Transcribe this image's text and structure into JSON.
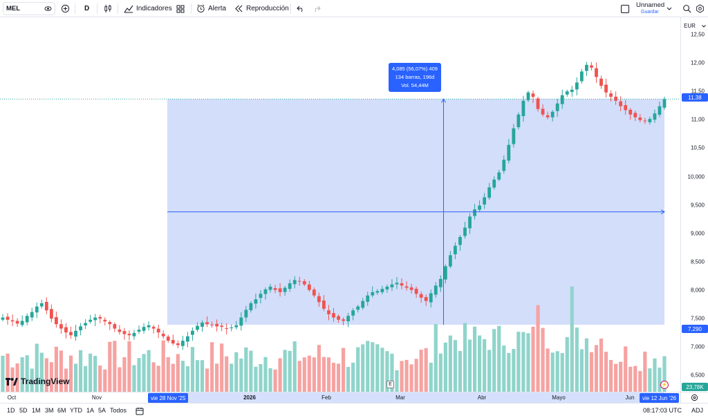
{
  "toolbar": {
    "symbol": "MEL",
    "interval": "D",
    "indicators_label": "Indicadores",
    "alert_label": "Alerta",
    "replay_label": "Reproducción",
    "layout_name": "Unnamed",
    "save_label": "Guardar",
    "icons": [
      "eye-icon",
      "plus-circle-icon",
      "candles-icon",
      "indicators-icon",
      "grid-icon",
      "alarm-icon",
      "replay-icon",
      "undo-icon",
      "redo-icon",
      "search-icon",
      "settings-icon"
    ]
  },
  "price_scale": {
    "currency": "EUR",
    "labels": [
      "12,50",
      "12,00",
      "11,50",
      "11,00",
      "10,50",
      "10,000",
      "9,500",
      "9,000",
      "8,500",
      "8,000",
      "7,500",
      "7,000",
      "6,500"
    ],
    "current_price_label": "11,38",
    "range_low_label": "7,290",
    "volume_label": "23,78K"
  },
  "time_scale": {
    "labels": [
      "Oct",
      "Nov",
      "2026",
      "Feb",
      "Mar",
      "Abr",
      "Mayo",
      "Jun"
    ],
    "range_start_label": "vie 28 Nov '25",
    "range_end_label": "vie 12 Jun '26"
  },
  "measure_tooltip": {
    "line1": "4,085 (56,07%) 409",
    "line2": "134 barras, 196d",
    "line3": "Vol. 54,44M"
  },
  "bottom": {
    "ranges": [
      "1D",
      "5D",
      "1M",
      "3M",
      "6M",
      "YTD",
      "1A",
      "5A",
      "Todos"
    ],
    "time": "08:17:03 UTC",
    "adj": "ADJ"
  },
  "logo_text": "TradingView",
  "e_marker": "E",
  "colors": {
    "up": "#26a69a",
    "down": "#ef5350",
    "vol_up": "#8fd4cb",
    "vol_down": "#f5a3a2",
    "measure_fill": "#d1dcfb",
    "accent": "#2962ff"
  },
  "chart_data": {
    "type": "candlestick",
    "symbol": "MEL",
    "currency": "EUR",
    "ylim": [
      6.1,
      12.8
    ],
    "time_range": [
      "Oct 2025",
      "Jun 2026"
    ],
    "measurement": {
      "start_date": "vie 28 Nov '25",
      "end_date": "vie 12 Jun '26",
      "low": 7.29,
      "high": 11.38,
      "change": 4.085,
      "change_pct": 56.07,
      "ticks": 409,
      "bars": 134,
      "days": 196,
      "volume": "54,44M"
    },
    "closes": [
      7.42,
      7.38,
      7.35,
      7.31,
      7.36,
      7.45,
      7.52,
      7.62,
      7.68,
      7.55,
      7.4,
      7.3,
      7.22,
      7.15,
      7.1,
      7.18,
      7.26,
      7.32,
      7.38,
      7.42,
      7.4,
      7.35,
      7.3,
      7.22,
      7.16,
      7.12,
      7.1,
      7.14,
      7.2,
      7.25,
      7.28,
      7.22,
      7.15,
      7.08,
      7.0,
      6.95,
      6.92,
      7.0,
      7.08,
      7.18,
      7.27,
      7.33,
      7.3,
      7.28,
      7.26,
      7.25,
      7.22,
      7.24,
      7.28,
      7.42,
      7.56,
      7.68,
      7.75,
      7.85,
      7.93,
      7.98,
      7.92,
      7.88,
      7.96,
      8.04,
      8.1,
      8.08,
      8.02,
      7.92,
      7.82,
      7.7,
      7.58,
      7.48,
      7.42,
      7.38,
      7.36,
      7.45,
      7.55,
      7.62,
      7.72,
      7.82,
      7.88,
      7.9,
      7.94,
      7.98,
      8.02,
      8.05,
      8.0,
      7.96,
      7.92,
      7.85,
      7.78,
      7.72,
      7.86,
      8.0,
      8.12,
      8.35,
      8.55,
      8.72,
      8.88,
      9.05,
      9.25,
      9.38,
      9.45,
      9.6,
      9.78,
      9.92,
      10.05,
      10.28,
      10.55,
      10.85,
      11.1,
      11.35,
      11.5,
      11.42,
      11.2,
      11.1,
      11.05,
      11.15,
      11.3,
      11.45,
      11.52,
      11.55,
      11.68,
      11.88,
      12.0,
      11.95,
      11.78,
      11.62,
      11.5,
      11.42,
      11.35,
      11.25,
      11.18,
      11.1,
      11.05,
      11.0,
      10.98,
      11.02,
      11.12,
      11.25,
      11.38
    ]
  }
}
